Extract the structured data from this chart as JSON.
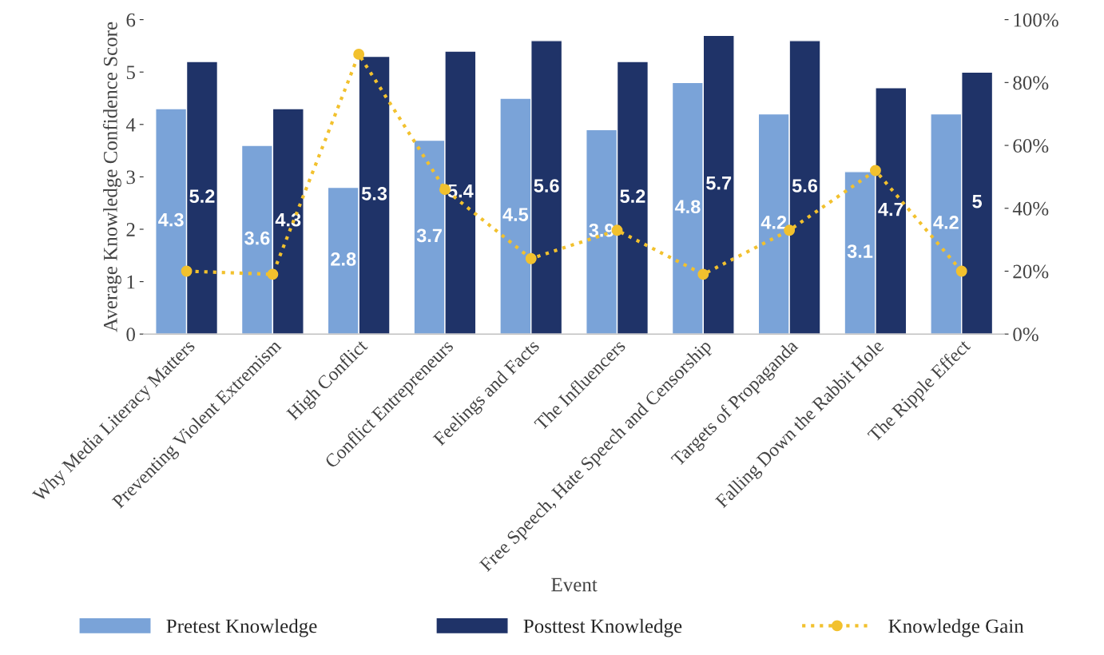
{
  "chart_data": {
    "type": "bar",
    "xlabel": "Event",
    "ylabel": "Average Knowledge Confidence Score",
    "categories": [
      "Why Media Literacy Matters",
      "Preventing Violent Extremism",
      "High Conflict",
      "Conflict Entrepreneurs",
      "Feelings and Facts",
      "The Influencers",
      "Free Speech, Hate Speech and Censorship",
      "Targets of Propaganda",
      "Falling Down the Rabbit Hole",
      "The Ripple Effect"
    ],
    "series": [
      {
        "name": "Pretest Knowledge",
        "color": "#7aa3d8",
        "values": [
          4.3,
          3.6,
          2.8,
          3.7,
          4.5,
          3.9,
          4.8,
          4.2,
          3.1,
          4.2
        ],
        "data_labels": true
      },
      {
        "name": "Posttest Knowledge",
        "color": "#1f3368",
        "values": [
          5.2,
          4.3,
          5.3,
          5.4,
          5.6,
          5.2,
          5.7,
          5.6,
          4.7,
          5
        ],
        "data_labels": true
      },
      {
        "name": "Knowledge Gain",
        "type": "line",
        "axis": "y2",
        "color": "#f2c12e",
        "marker": "circle",
        "line_style": "dotted",
        "values": [
          20,
          19,
          89,
          46,
          24,
          33,
          19,
          33,
          52,
          20
        ]
      }
    ],
    "ylim": [
      0,
      6
    ],
    "yticks": [
      0,
      1,
      2,
      3,
      4,
      5,
      6
    ],
    "y2lim": [
      0,
      100
    ],
    "y2ticks": [
      {
        "value": 0,
        "label": "0%"
      },
      {
        "value": 20,
        "label": "20%"
      },
      {
        "value": 40,
        "label": "40%"
      },
      {
        "value": 60,
        "label": "60%"
      },
      {
        "value": 80,
        "label": "80%"
      },
      {
        "value": 100,
        "label": "100%"
      }
    ],
    "grid": false,
    "legend": "bottom"
  }
}
